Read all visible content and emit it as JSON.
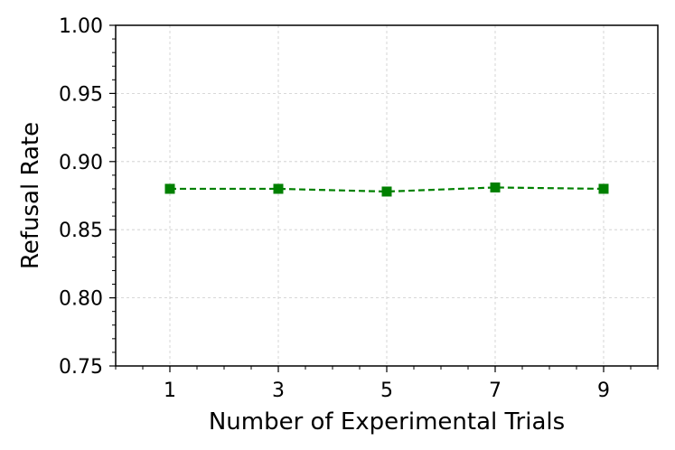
{
  "chart_data": {
    "type": "line",
    "xlabel": "Number of Experimental Trials",
    "ylabel": "Refusal Rate",
    "xlim": [
      0,
      10
    ],
    "ylim": [
      0.75,
      1.0
    ],
    "x_ticks": [
      "1",
      "3",
      "5",
      "7",
      "9"
    ],
    "x_tick_values": [
      1,
      3,
      5,
      7,
      9
    ],
    "y_ticks": [
      "0.75",
      "0.80",
      "0.85",
      "0.90",
      "0.95",
      "1.00"
    ],
    "y_tick_values": [
      0.75,
      0.8,
      0.85,
      0.9,
      0.95,
      1.0
    ],
    "grid": true,
    "series": [
      {
        "color": "#008000",
        "line_style": "dashed",
        "marker": "square",
        "x": [
          1,
          3,
          5,
          7,
          9
        ],
        "y": [
          0.88,
          0.88,
          0.878,
          0.881,
          0.88
        ]
      }
    ]
  }
}
